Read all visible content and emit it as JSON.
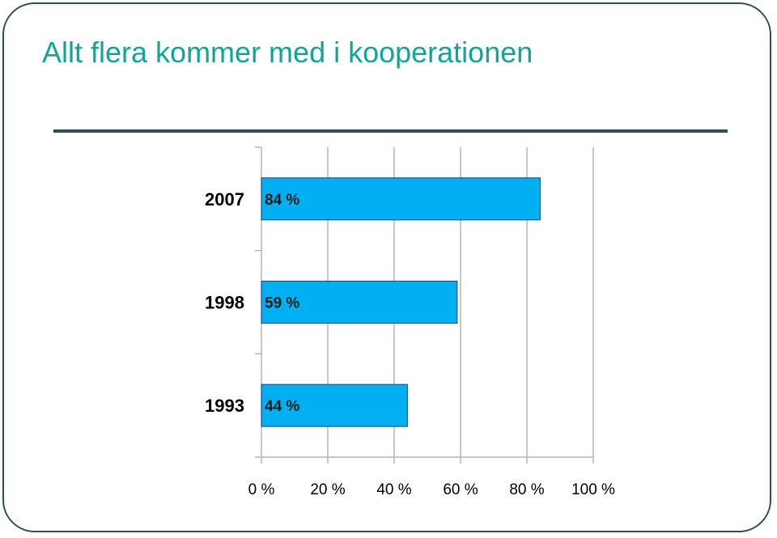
{
  "slide": {
    "title": "Allt flera kommer med i kooperationen"
  },
  "chart_data": {
    "type": "bar",
    "orientation": "horizontal",
    "title": "Allt flera kommer med i kooperationen",
    "categories": [
      "2007",
      "1998",
      "1993"
    ],
    "values": [
      84,
      59,
      44
    ],
    "data_labels": [
      "84 %",
      "59 %",
      "44 %"
    ],
    "xlim": [
      0,
      100
    ],
    "x_ticks": [
      0,
      20,
      40,
      60,
      80,
      100
    ],
    "x_tick_labels": [
      "0 %",
      "20 %",
      "40 %",
      "60 %",
      "80 %",
      "100 %"
    ],
    "xlabel": "",
    "ylabel": "",
    "grid": true,
    "legend": "none",
    "bar_color": "#00b0f0",
    "bar_edge_color": "#1f3f8f",
    "grid_color": "#b5b5b5",
    "title_color": "#10a59a",
    "frame_color": "#2d4f55"
  }
}
